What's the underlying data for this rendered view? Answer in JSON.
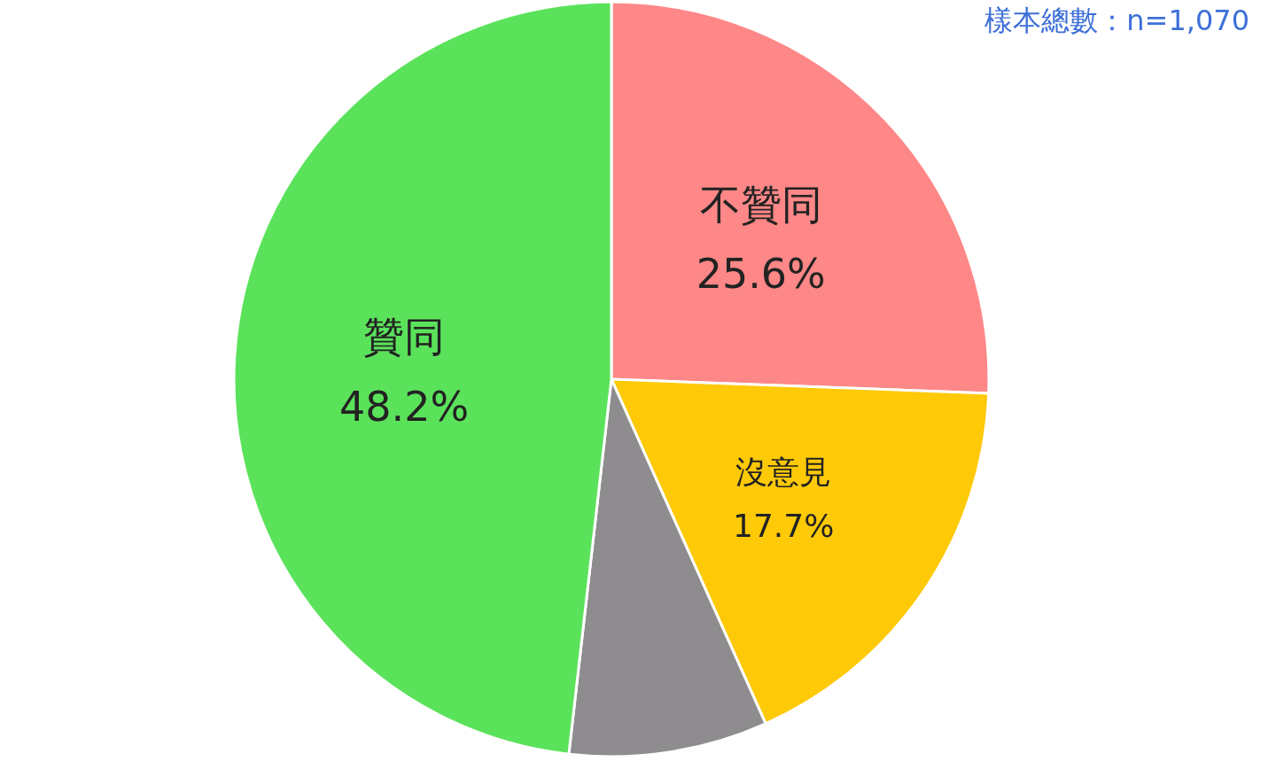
{
  "chart_data": {
    "type": "pie",
    "annotations": [
      "樣本總數：n=1,070"
    ],
    "categories": [
      "不贊同",
      "沒意見",
      null,
      "贊同"
    ],
    "values": [
      25.6,
      17.7,
      8.5,
      48.2
    ],
    "colors": [
      "#fe8787",
      "#fec907",
      "#8e8c8e",
      "#5be25b"
    ],
    "value_labels": [
      "25.6%",
      "17.7%",
      null,
      "48.2%"
    ]
  }
}
